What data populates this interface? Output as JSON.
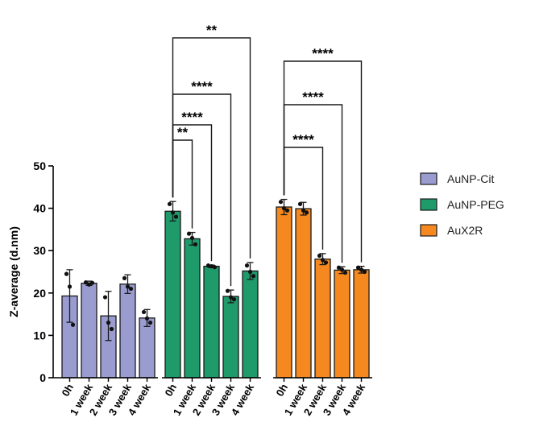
{
  "chart_data": {
    "type": "bar",
    "ylabel": "Z-average (d.nm)",
    "ylim": [
      0,
      50
    ],
    "yticks": [
      0,
      10,
      20,
      30,
      40,
      50
    ],
    "categories": [
      "0h",
      "1 week",
      "2 week",
      "3 week",
      "4 week"
    ],
    "groups": [
      {
        "name": "AuNP-Cit",
        "color": "#9a9cd0",
        "values": [
          19.3,
          22.3,
          14.6,
          22.1,
          14.1
        ],
        "errors": [
          6.2,
          0.5,
          5.8,
          2.2,
          2.0
        ],
        "points": [
          [
            24.5,
            21.5,
            12.5
          ],
          [
            22.5,
            22.0,
            22.4
          ],
          [
            19.0,
            13.0,
            11.5
          ],
          [
            23.5,
            21.5,
            21.0
          ],
          [
            15.5,
            14.0,
            13.0
          ]
        ]
      },
      {
        "name": "AuNP-PEG",
        "color": "#1f9b6b",
        "values": [
          39.3,
          32.8,
          26.3,
          19.2,
          25.2
        ],
        "errors": [
          2.3,
          1.5,
          0.3,
          1.5,
          2.0
        ],
        "points": [
          [
            41.0,
            39.0,
            38.0
          ],
          [
            34.0,
            33.0,
            31.5
          ],
          [
            26.5,
            26.3,
            26.1
          ],
          [
            20.5,
            19.0,
            18.5
          ],
          [
            26.5,
            25.0,
            24.0
          ]
        ]
      },
      {
        "name": "AuX2R",
        "color": "#f5891f",
        "values": [
          40.3,
          39.9,
          28.0,
          25.4,
          25.5
        ],
        "errors": [
          1.8,
          1.5,
          1.3,
          0.8,
          0.8
        ],
        "points": [
          [
            41.5,
            40.0,
            39.5
          ],
          [
            41.0,
            39.5,
            39.0
          ],
          [
            28.8,
            27.8,
            27.2
          ],
          [
            26.0,
            25.5,
            24.8
          ],
          [
            26.0,
            25.5,
            25.0
          ]
        ]
      }
    ],
    "significance": [
      {
        "group": 1,
        "from": 0,
        "to": 1,
        "label": "**"
      },
      {
        "group": 1,
        "from": 0,
        "to": 2,
        "label": "****"
      },
      {
        "group": 1,
        "from": 0,
        "to": 3,
        "label": "****"
      },
      {
        "group": 1,
        "from": 0,
        "to": 4,
        "label": "**"
      },
      {
        "group": 2,
        "from": 0,
        "to": 2,
        "label": "****"
      },
      {
        "group": 2,
        "from": 0,
        "to": 3,
        "label": "****"
      },
      {
        "group": 2,
        "from": 0,
        "to": 4,
        "label": "****"
      }
    ],
    "legend": {
      "position": "right",
      "entries": [
        "AuNP-Cit",
        "AuNP-PEG",
        "AuX2R"
      ]
    }
  }
}
